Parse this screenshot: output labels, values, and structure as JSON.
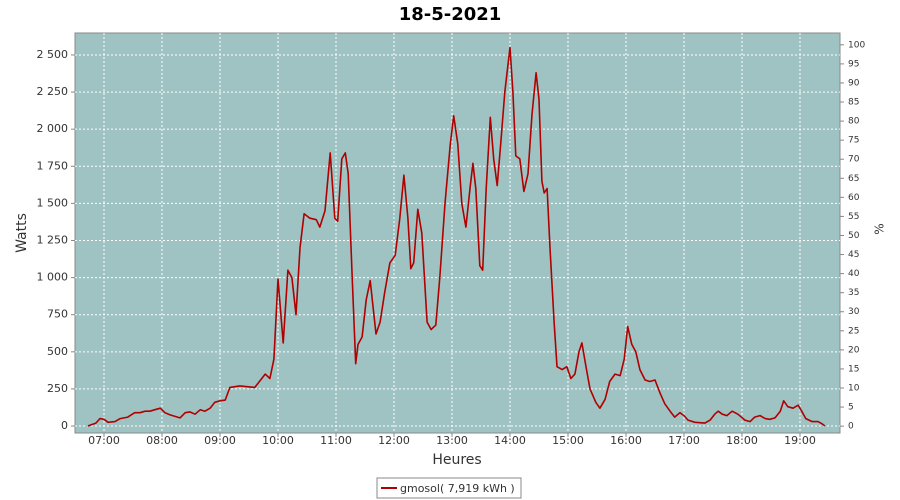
{
  "chart_data": {
    "type": "line",
    "title": "18-5-2021",
    "ylabel": "Watts",
    "y2label": "%",
    "xlabel": "Heures",
    "x": [
      6.72,
      6.86,
      6.93,
      7.0,
      7.07,
      7.19,
      7.28,
      7.41,
      7.53,
      7.62,
      7.71,
      7.79,
      7.88,
      7.97,
      8.05,
      8.14,
      8.31,
      8.4,
      8.48,
      8.57,
      8.66,
      8.74,
      8.83,
      8.91,
      9.0,
      9.09,
      9.17,
      9.34,
      9.6,
      9.78,
      9.86,
      9.93,
      10.0,
      10.09,
      10.17,
      10.24,
      10.31,
      10.38,
      10.45,
      10.55,
      10.66,
      10.72,
      10.81,
      10.9,
      10.98,
      11.03,
      11.1,
      11.16,
      11.21,
      11.28,
      11.34,
      11.38,
      11.45,
      11.52,
      11.59,
      11.64,
      11.69,
      11.76,
      11.84,
      11.93,
      12.02,
      12.1,
      12.17,
      12.24,
      12.29,
      12.34,
      12.41,
      12.48,
      12.57,
      12.64,
      12.72,
      12.79,
      12.88,
      12.97,
      13.03,
      13.1,
      13.17,
      13.24,
      13.31,
      13.36,
      13.41,
      13.48,
      13.53,
      13.59,
      13.66,
      13.72,
      13.78,
      13.84,
      13.91,
      14.0,
      14.05,
      14.1,
      14.17,
      14.24,
      14.31,
      14.38,
      14.45,
      14.5,
      14.55,
      14.59,
      14.64,
      14.69,
      14.76,
      14.81,
      14.9,
      14.98,
      15.05,
      15.12,
      15.19,
      15.24,
      15.31,
      15.38,
      15.48,
      15.55,
      15.64,
      15.72,
      15.81,
      15.9,
      15.97,
      16.03,
      16.1,
      16.17,
      16.24,
      16.33,
      16.41,
      16.5,
      16.59,
      16.67,
      16.76,
      16.84,
      16.93,
      17.0,
      17.07,
      17.19,
      17.36,
      17.45,
      17.53,
      17.59,
      17.66,
      17.74,
      17.83,
      17.93,
      18.05,
      18.14,
      18.22,
      18.31,
      18.4,
      18.48,
      18.57,
      18.66,
      18.72,
      18.79,
      18.88,
      18.97,
      19.03,
      19.1,
      19.21,
      19.31,
      19.38,
      19.43
    ],
    "series": [
      {
        "name": "gmosol( 7,919 kWh )",
        "color": "#b00000",
        "values": [
          0,
          20,
          50,
          45,
          25,
          30,
          50,
          60,
          90,
          90,
          100,
          100,
          110,
          120,
          90,
          75,
          55,
          90,
          95,
          80,
          110,
          100,
          120,
          160,
          170,
          175,
          260,
          270,
          260,
          350,
          320,
          450,
          990,
          560,
          1050,
          1000,
          750,
          1200,
          1430,
          1400,
          1390,
          1340,
          1450,
          1840,
          1400,
          1380,
          1800,
          1840,
          1700,
          1000,
          420,
          550,
          600,
          850,
          980,
          800,
          620,
          700,
          900,
          1100,
          1150,
          1400,
          1690,
          1400,
          1060,
          1100,
          1460,
          1300,
          700,
          650,
          680,
          1000,
          1500,
          1900,
          2090,
          1900,
          1500,
          1340,
          1600,
          1770,
          1600,
          1080,
          1050,
          1600,
          2080,
          1800,
          1620,
          1900,
          2250,
          2550,
          2250,
          1820,
          1800,
          1580,
          1700,
          2100,
          2380,
          2200,
          1650,
          1570,
          1600,
          1200,
          700,
          400,
          380,
          400,
          320,
          350,
          500,
          560,
          400,
          250,
          160,
          120,
          180,
          300,
          350,
          340,
          450,
          670,
          550,
          500,
          380,
          310,
          300,
          310,
          220,
          150,
          100,
          60,
          90,
          70,
          40,
          25,
          20,
          40,
          80,
          100,
          80,
          70,
          100,
          80,
          40,
          30,
          60,
          70,
          50,
          45,
          55,
          100,
          170,
          130,
          120,
          140,
          100,
          50,
          30,
          30,
          15,
          0
        ]
      }
    ],
    "xlim": [
      6.5,
      19.69
    ],
    "xticks": [
      {
        "value": 7,
        "label": "07:00"
      },
      {
        "value": 8,
        "label": "08:00"
      },
      {
        "value": 9,
        "label": "09:00"
      },
      {
        "value": 10,
        "label": "10:00"
      },
      {
        "value": 11,
        "label": "11:00"
      },
      {
        "value": 12,
        "label": "12:00"
      },
      {
        "value": 13,
        "label": "13:00"
      },
      {
        "value": 14,
        "label": "14:00"
      },
      {
        "value": 15,
        "label": "15:00"
      },
      {
        "value": 16,
        "label": "16:00"
      },
      {
        "value": 17,
        "label": "17:00"
      },
      {
        "value": 18,
        "label": "18:00"
      },
      {
        "value": 19,
        "label": "19:00"
      }
    ],
    "ylim": [
      -47,
      2648
    ],
    "yticks": [
      0,
      250,
      500,
      750,
      {
        "value": 1000,
        "label": "1 000"
      },
      {
        "value": 1250,
        "label": "1 250"
      },
      {
        "value": 1500,
        "label": "1 500"
      },
      {
        "value": 1750,
        "label": "1 750"
      },
      {
        "value": 2000,
        "label": "2 000"
      },
      {
        "value": 2250,
        "label": "2 250"
      },
      {
        "value": 2500,
        "label": "2 500"
      }
    ],
    "y2lim": [
      -1.8,
      103.1
    ],
    "y2ticks": [
      0,
      5,
      10,
      15,
      20,
      25,
      30,
      35,
      40,
      45,
      50,
      55,
      60,
      65,
      70,
      75,
      80,
      85,
      90,
      95,
      100
    ],
    "grid": true,
    "background": "#9fc3c3"
  }
}
